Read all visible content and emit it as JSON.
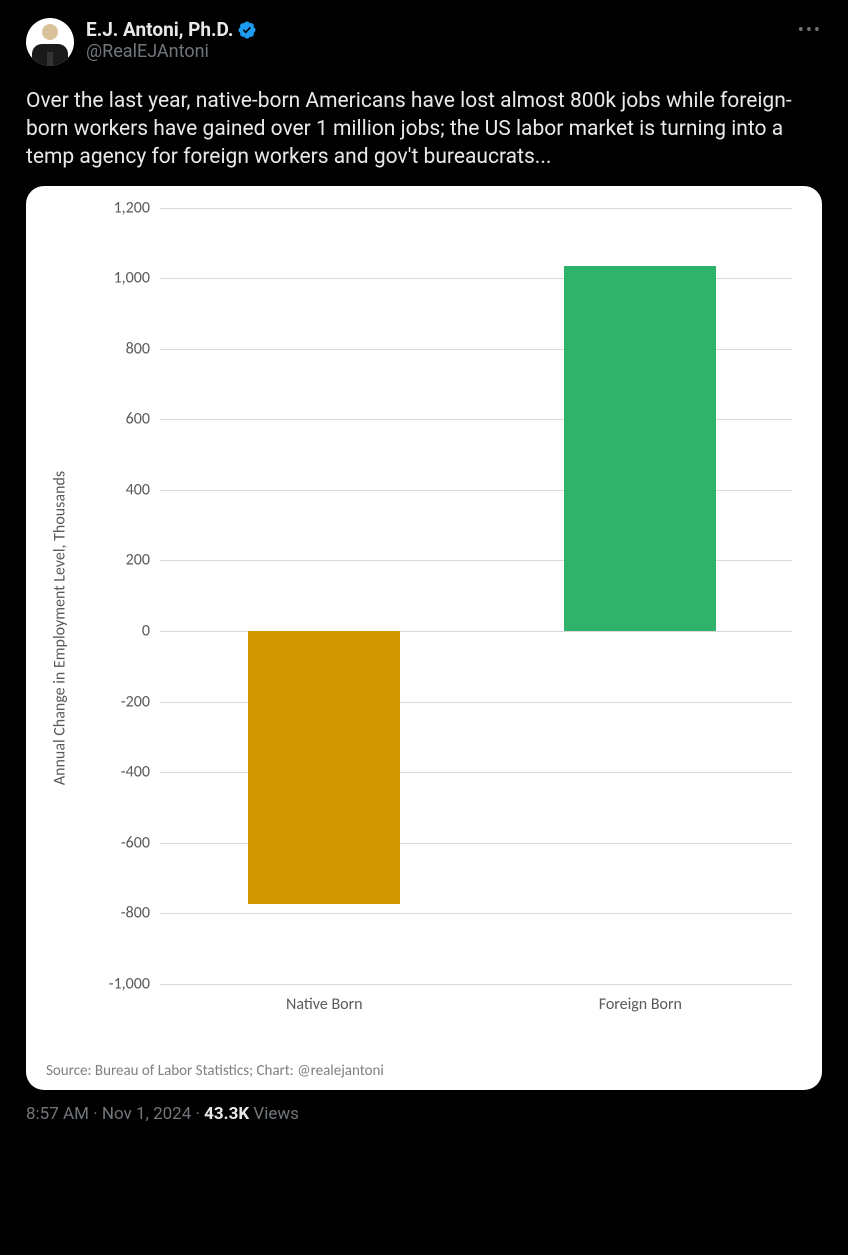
{
  "header": {
    "display_name": "E.J. Antoni, Ph.D.",
    "handle": "@RealEJAntoni",
    "verified_color": "#1d9bf0"
  },
  "tweet_text": "Over the last year, native-born Americans have lost almost 800k jobs while foreign-born workers have gained over 1 million jobs; the US labor market is turning into a temp agency for foreign workers and gov't bureaucrats...",
  "chart": {
    "type": "bar",
    "y_axis_title": "Annual Change in Employment Level, Thousands",
    "y_min": -1000,
    "y_max": 1200,
    "y_ticks": [
      1200,
      1000,
      800,
      600,
      400,
      200,
      0,
      -200,
      -400,
      -600,
      -800,
      -1000
    ],
    "y_tick_labels": [
      "1,200",
      "1,000",
      "800",
      "600",
      "400",
      "200",
      "0",
      "-200",
      "-400",
      "-600",
      "-800",
      "-1,000"
    ],
    "grid_color": "#d9d9d9",
    "label_color": "#595959",
    "label_fontsize": 16,
    "background_color": "#ffffff",
    "bars": [
      {
        "category": "Native Born",
        "value": -775,
        "color": "#d19700",
        "x_center_pct": 26
      },
      {
        "category": "Foreign Born",
        "value": 1035,
        "color": "#2fb36b",
        "x_center_pct": 76
      }
    ],
    "bar_width_pct": 24,
    "source_text": "Source: Bureau of Labor Statistics; Chart: @realejantoni"
  },
  "meta": {
    "time": "8:57 AM",
    "sep1": " · ",
    "date": "Nov 1, 2024",
    "sep2": " · ",
    "views_count": "43.3K",
    "views_label": " Views"
  },
  "colors": {
    "page_bg": "#000000",
    "text_primary": "#e7e9ea",
    "text_secondary": "#71767b"
  }
}
